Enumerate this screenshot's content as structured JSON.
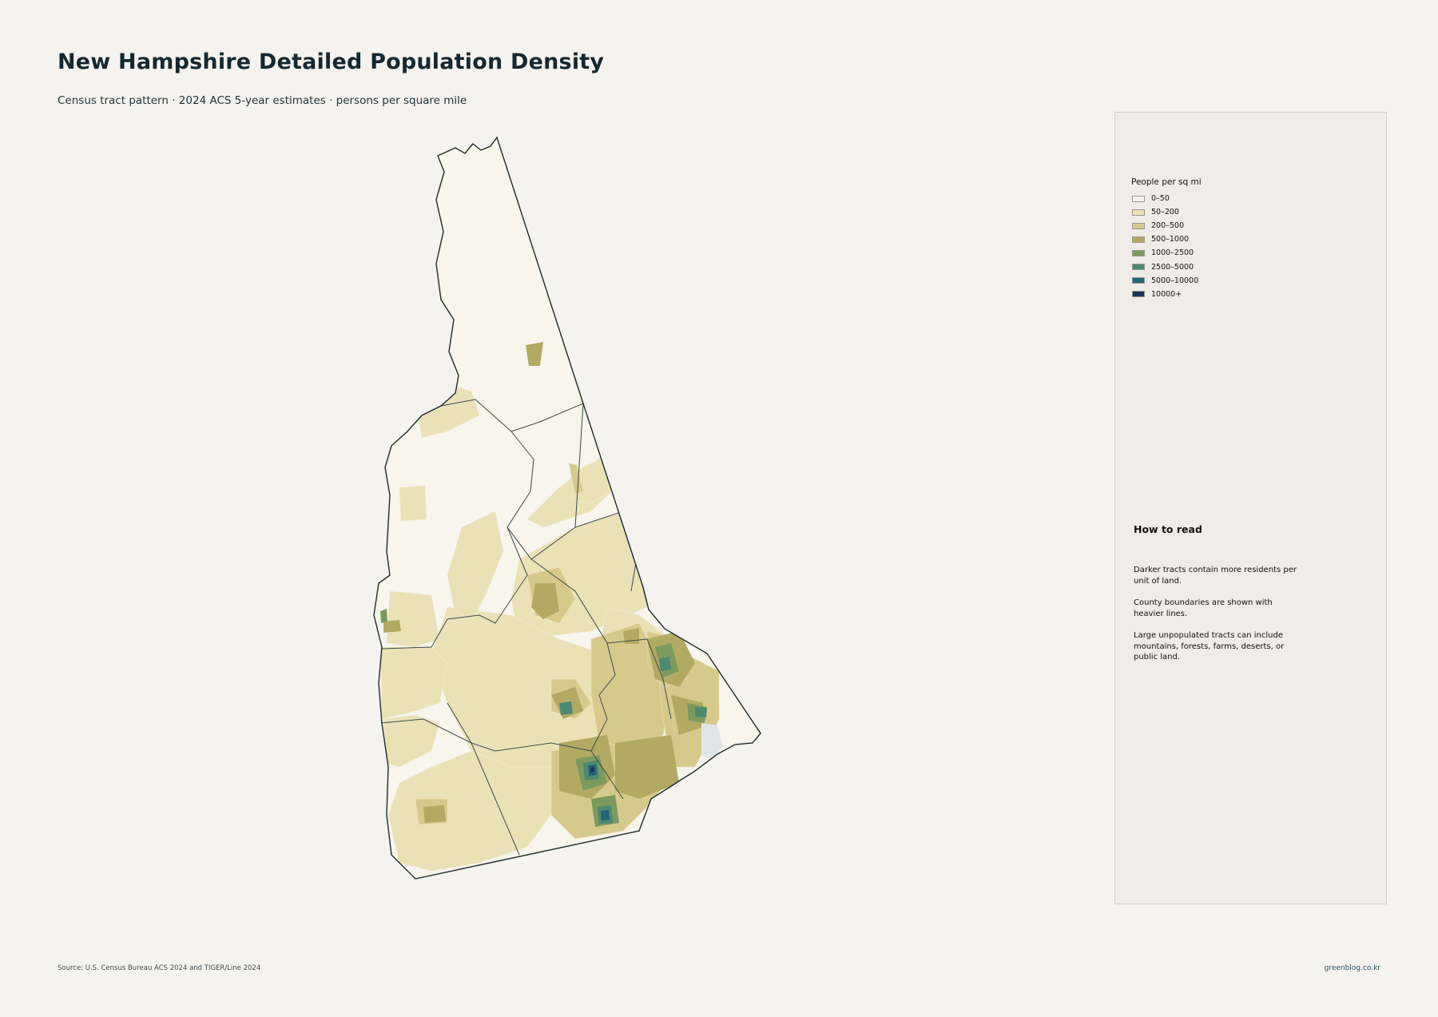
{
  "header": {
    "title": "New Hampshire Detailed Population Density",
    "subtitle": "Census tract pattern · 2024 ACS 5-year estimates · persons per square mile"
  },
  "legend": {
    "title": "People per sq mi",
    "items": [
      {
        "label": "0–50",
        "color": "#f7f5ee"
      },
      {
        "label": "50–200",
        "color": "#ebe1b7"
      },
      {
        "label": "200–500",
        "color": "#d7c98c"
      },
      {
        "label": "500–1000",
        "color": "#b2aa63"
      },
      {
        "label": "1000–2500",
        "color": "#7b9b5e"
      },
      {
        "label": "2500–5000",
        "color": "#4a8a70"
      },
      {
        "label": "5000–10000",
        "color": "#22657a"
      },
      {
        "label": "10000+",
        "color": "#1b3558"
      }
    ]
  },
  "how_to_read": {
    "title": "How to read",
    "paragraphs": [
      "Darker tracts contain more residents per unit of land.",
      "County boundaries are shown with heavier lines.",
      "Large unpopulated tracts can include mountains, forests, farms, deserts, or public land."
    ]
  },
  "footer": {
    "source": "Source: U.S. Census Bureau ACS 2024 and TIGER/Line 2024",
    "credit": "greenblog.co.kr"
  }
}
